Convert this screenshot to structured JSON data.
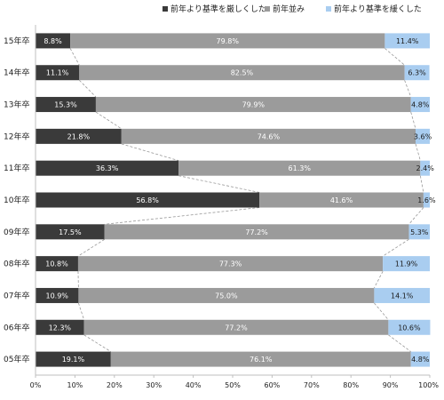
{
  "chart_data": {
    "type": "bar",
    "orientation": "horizontal",
    "stacked": "percent",
    "categories": [
      "15年卒",
      "14年卒",
      "13年卒",
      "12年卒",
      "11年卒",
      "10年卒",
      "09年卒",
      "08年卒",
      "07年卒",
      "06年卒",
      "05年卒"
    ],
    "series": [
      {
        "name": "前年より基準を厳しくした",
        "color": "#3a3a3a",
        "values": [
          8.8,
          11.1,
          15.3,
          21.8,
          36.3,
          56.8,
          17.5,
          10.8,
          10.9,
          12.3,
          19.1
        ],
        "labels": [
          "8.8%",
          "11.1%",
          "15.3%",
          "21.8%",
          "36.3%",
          "56.8%",
          "17.5%",
          "10.8%",
          "10.9%",
          "12.3%",
          "19.1%"
        ]
      },
      {
        "name": "前年並み",
        "color": "#9b9b9b",
        "values": [
          79.8,
          82.5,
          79.9,
          74.6,
          61.3,
          41.6,
          77.2,
          77.3,
          75.0,
          77.2,
          76.1
        ],
        "labels": [
          "79.8%",
          "82.5%",
          "79.9%",
          "74.6%",
          "61.3%",
          "41.6%",
          "77.2%",
          "77.3%",
          "75.0%",
          "77.2%",
          "76.1%"
        ]
      },
      {
        "name": "前年より基準を緩くした",
        "color": "#a9cdf0",
        "values": [
          11.4,
          6.3,
          4.8,
          3.6,
          2.4,
          1.6,
          5.3,
          11.9,
          14.1,
          10.6,
          4.8
        ],
        "labels": [
          "11.4%",
          "6.3%",
          "4.8%",
          "3.6%",
          "2.4%",
          "1.6%",
          "5.3%",
          "11.9%",
          "14.1%",
          "10.6%",
          "4.8%"
        ]
      }
    ],
    "xlim": [
      0,
      100
    ],
    "x_ticks": [
      "0%",
      "10%",
      "20%",
      "30%",
      "40%",
      "50%",
      "60%",
      "70%",
      "80%",
      "90%",
      "100%"
    ],
    "legend_position": "top-right",
    "series_connector_lines": "dashed",
    "grid": false
  }
}
